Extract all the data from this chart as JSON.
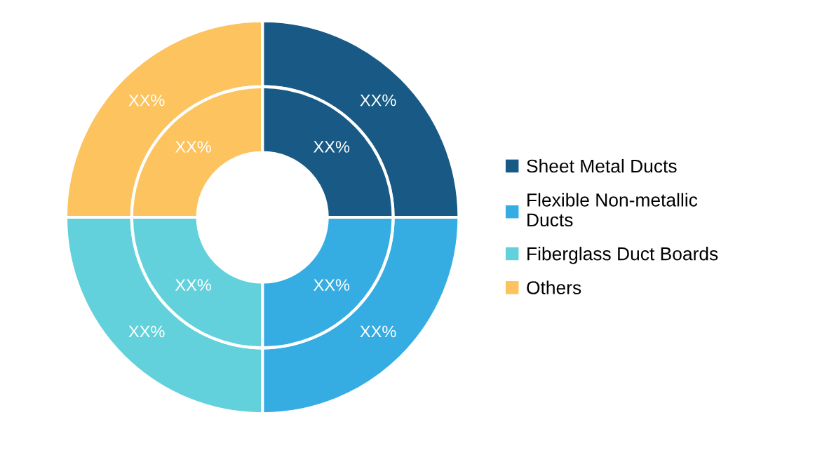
{
  "chart_data": {
    "type": "donut",
    "categories": [
      "Sheet Metal Ducts",
      "Flexible Non-metallic\nDucts",
      "Fiberglass Duct Boards",
      "Others"
    ],
    "colors": [
      "#185a85",
      "#35ade3",
      "#62d1db",
      "#fcc35f"
    ],
    "series": [
      {
        "values": [
          25,
          25,
          25,
          25
        ],
        "value_labels": [
          "XX%",
          "XX%",
          "XX%",
          "XX%"
        ]
      },
      {
        "values": [
          25,
          25,
          25,
          25
        ],
        "value_labels": [
          "XX%",
          "XX%",
          "XX%",
          "XX%"
        ]
      }
    ],
    "legend": "right"
  }
}
